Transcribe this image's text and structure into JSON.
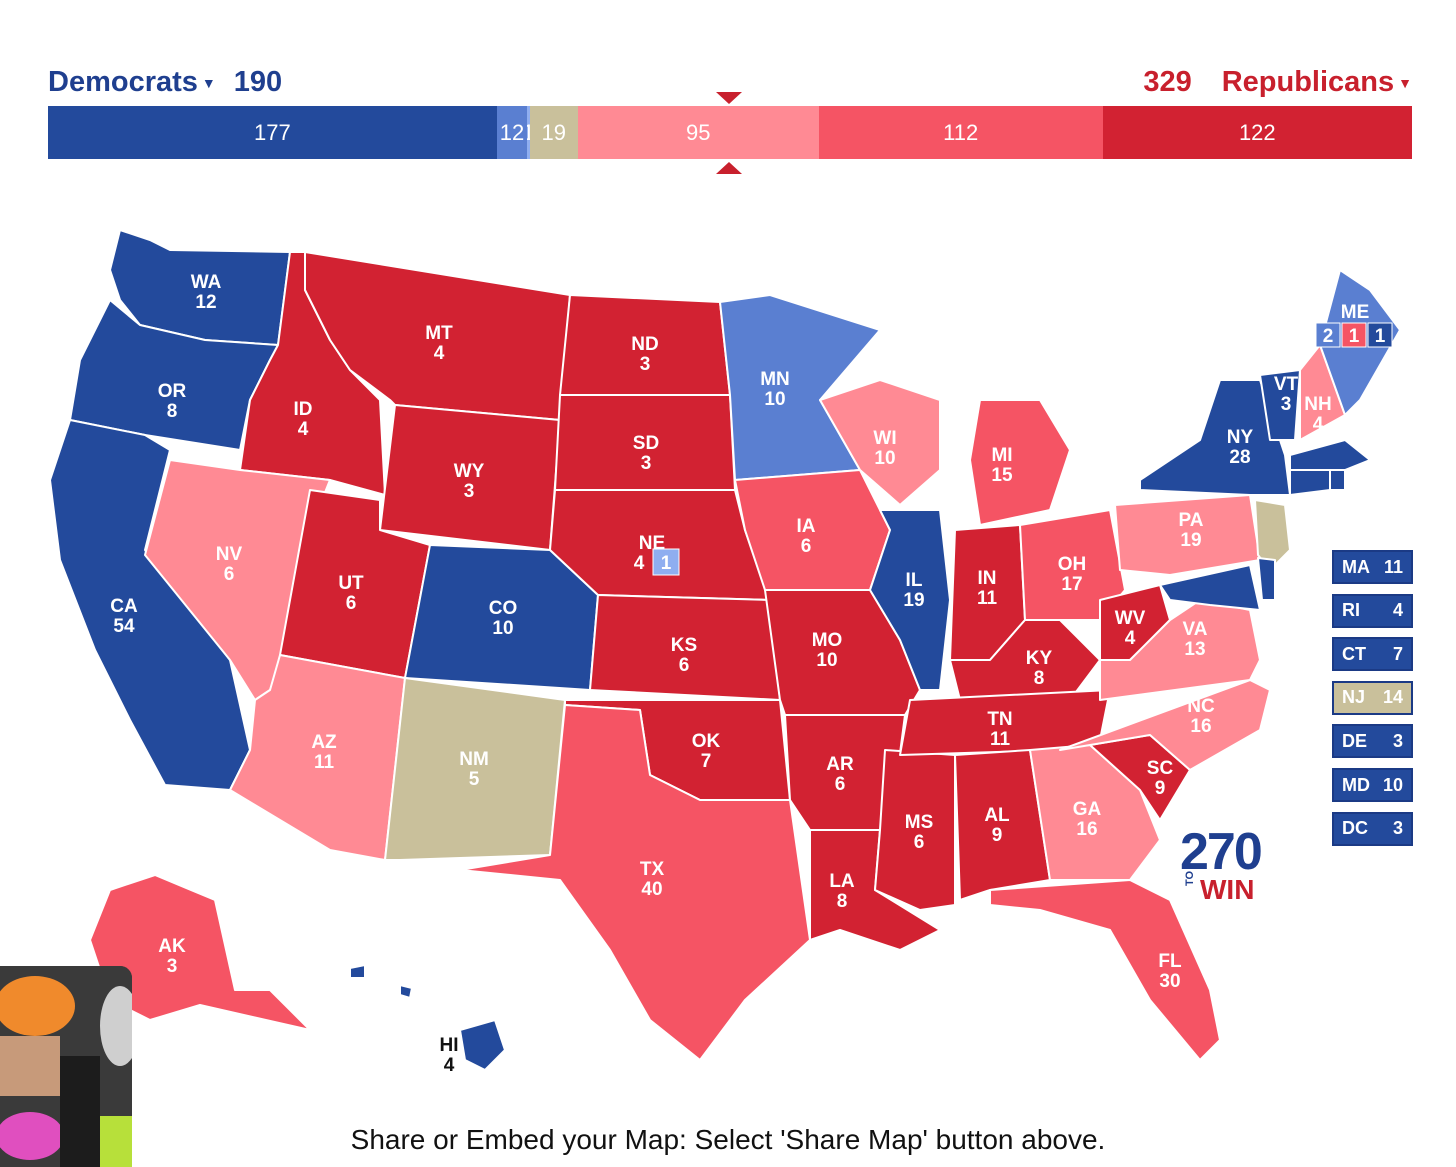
{
  "header": {
    "dem_label": "Democrats",
    "dem_total": "190",
    "rep_total": "329",
    "rep_label": "Republicans",
    "dropdown_icon": "caret-down-icon"
  },
  "bar": [
    {
      "value": 177,
      "label": "177",
      "color": "#234a9c"
    },
    {
      "value": 12,
      "label": "12",
      "color": "#5a7fd1"
    },
    {
      "value": 1,
      "label": "1",
      "color": "#8faef0"
    },
    {
      "value": 19,
      "label": "19",
      "color": "#c9c09b"
    },
    {
      "value": 95,
      "label": "95",
      "color": "#ff8a94"
    },
    {
      "value": 112,
      "label": "112",
      "color": "#f55464"
    },
    {
      "value": 122,
      "label": "122",
      "color": "#d22232"
    }
  ],
  "colors": {
    "safe_d": "#234a9c",
    "likely_d": "#5a7fd1",
    "lean_d": "#8faef0",
    "tossup": "#c9c09b",
    "lean_r": "#ff8a94",
    "likely_r": "#f55464",
    "safe_r": "#d22232"
  },
  "states": [
    {
      "abbr": "WA",
      "ev": "12",
      "cat": "safe_d"
    },
    {
      "abbr": "OR",
      "ev": "8",
      "cat": "safe_d"
    },
    {
      "abbr": "CA",
      "ev": "54",
      "cat": "safe_d"
    },
    {
      "abbr": "ID",
      "ev": "4",
      "cat": "safe_r"
    },
    {
      "abbr": "NV",
      "ev": "6",
      "cat": "lean_r"
    },
    {
      "abbr": "MT",
      "ev": "4",
      "cat": "safe_r"
    },
    {
      "abbr": "WY",
      "ev": "3",
      "cat": "safe_r"
    },
    {
      "abbr": "UT",
      "ev": "6",
      "cat": "safe_r"
    },
    {
      "abbr": "CO",
      "ev": "10",
      "cat": "safe_d"
    },
    {
      "abbr": "AZ",
      "ev": "11",
      "cat": "lean_r"
    },
    {
      "abbr": "NM",
      "ev": "5",
      "cat": "tossup"
    },
    {
      "abbr": "ND",
      "ev": "3",
      "cat": "safe_r"
    },
    {
      "abbr": "SD",
      "ev": "3",
      "cat": "safe_r"
    },
    {
      "abbr": "NE",
      "ev": "4",
      "cat": "safe_r"
    },
    {
      "abbr": "KS",
      "ev": "6",
      "cat": "safe_r"
    },
    {
      "abbr": "OK",
      "ev": "7",
      "cat": "safe_r"
    },
    {
      "abbr": "TX",
      "ev": "40",
      "cat": "likely_r"
    },
    {
      "abbr": "MN",
      "ev": "10",
      "cat": "likely_d"
    },
    {
      "abbr": "IA",
      "ev": "6",
      "cat": "likely_r"
    },
    {
      "abbr": "MO",
      "ev": "10",
      "cat": "safe_r"
    },
    {
      "abbr": "AR",
      "ev": "6",
      "cat": "safe_r"
    },
    {
      "abbr": "LA",
      "ev": "8",
      "cat": "safe_r"
    },
    {
      "abbr": "WI",
      "ev": "10",
      "cat": "lean_r"
    },
    {
      "abbr": "IL",
      "ev": "19",
      "cat": "safe_d"
    },
    {
      "abbr": "MS",
      "ev": "6",
      "cat": "safe_r"
    },
    {
      "abbr": "MI",
      "ev": "15",
      "cat": "likely_r"
    },
    {
      "abbr": "IN",
      "ev": "11",
      "cat": "safe_r"
    },
    {
      "abbr": "KY",
      "ev": "8",
      "cat": "safe_r"
    },
    {
      "abbr": "TN",
      "ev": "11",
      "cat": "safe_r"
    },
    {
      "abbr": "AL",
      "ev": "9",
      "cat": "safe_r"
    },
    {
      "abbr": "OH",
      "ev": "17",
      "cat": "likely_r"
    },
    {
      "abbr": "WV",
      "ev": "4",
      "cat": "safe_r"
    },
    {
      "abbr": "GA",
      "ev": "16",
      "cat": "lean_r"
    },
    {
      "abbr": "FL",
      "ev": "30",
      "cat": "likely_r"
    },
    {
      "abbr": "SC",
      "ev": "9",
      "cat": "safe_r"
    },
    {
      "abbr": "NC",
      "ev": "16",
      "cat": "lean_r"
    },
    {
      "abbr": "VA",
      "ev": "13",
      "cat": "lean_r"
    },
    {
      "abbr": "PA",
      "ev": "19",
      "cat": "lean_r"
    },
    {
      "abbr": "NY",
      "ev": "28",
      "cat": "safe_d"
    },
    {
      "abbr": "VT",
      "ev": "3",
      "cat": "safe_d"
    },
    {
      "abbr": "NH",
      "ev": "4",
      "cat": "lean_r"
    },
    {
      "abbr": "ME",
      "ev": "",
      "cat": "likely_d"
    },
    {
      "abbr": "AK",
      "ev": "3",
      "cat": "likely_r"
    },
    {
      "abbr": "HI",
      "ev": "4",
      "cat": "safe_d"
    }
  ],
  "maine_districts": [
    "2",
    "1",
    "1"
  ],
  "nebraska_district": "1",
  "side_states": [
    {
      "abbr": "MA",
      "ev": "11",
      "cat": "safe_d"
    },
    {
      "abbr": "RI",
      "ev": "4",
      "cat": "safe_d"
    },
    {
      "abbr": "CT",
      "ev": "7",
      "cat": "safe_d"
    },
    {
      "abbr": "NJ",
      "ev": "14",
      "cat": "tossup"
    },
    {
      "abbr": "DE",
      "ev": "3",
      "cat": "safe_d"
    },
    {
      "abbr": "MD",
      "ev": "10",
      "cat": "safe_d"
    },
    {
      "abbr": "DC",
      "ev": "3",
      "cat": "safe_d"
    }
  ],
  "logo": {
    "number": "270",
    "to": "TO",
    "win": "WIN"
  },
  "footer": "Share or Embed your Map: Select 'Share Map' button above."
}
